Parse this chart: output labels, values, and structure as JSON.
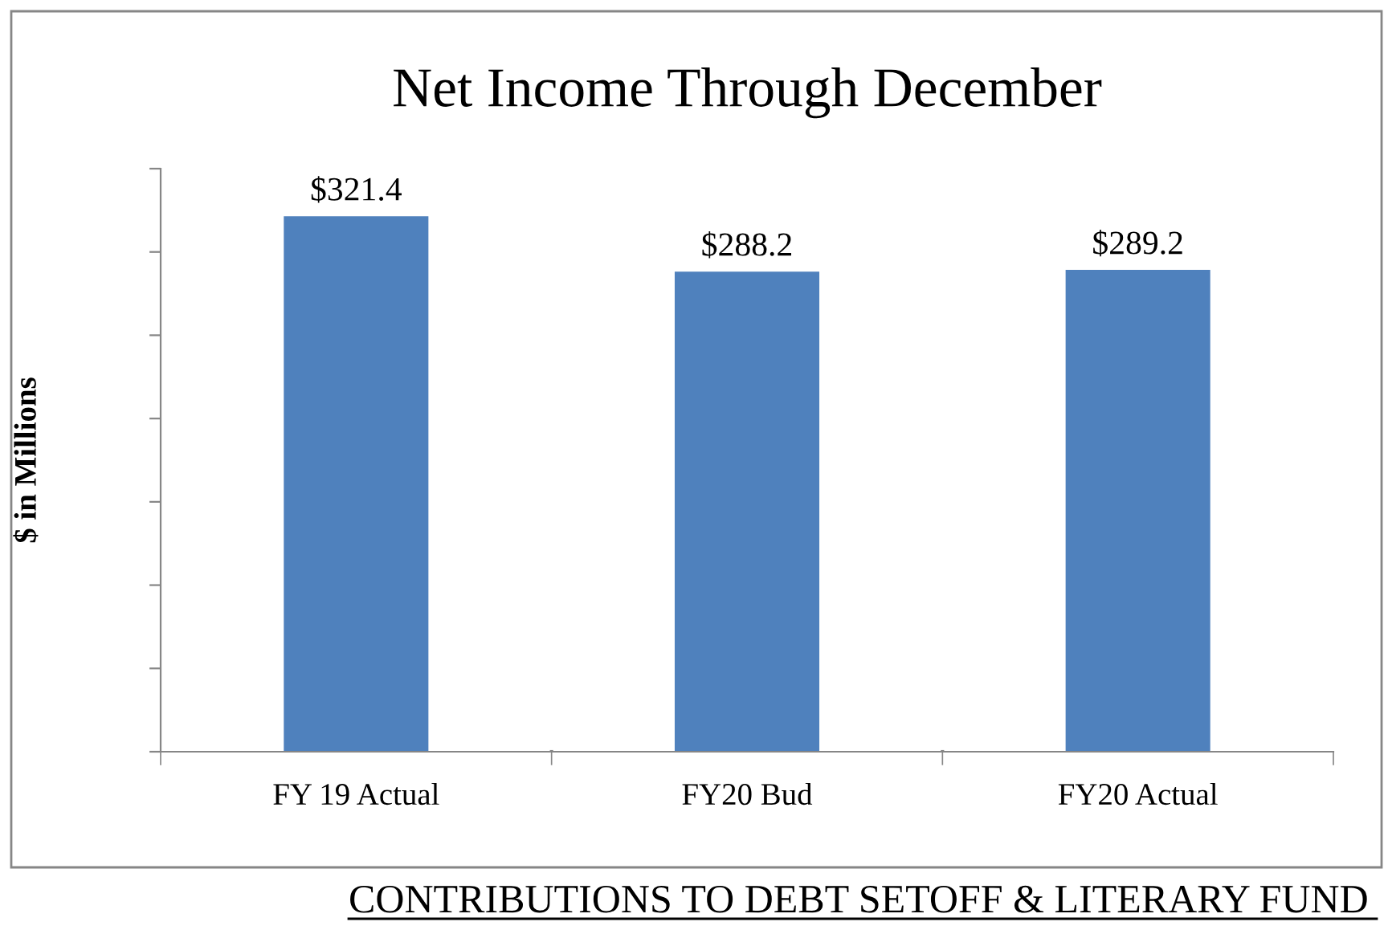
{
  "chart_data": {
    "type": "bar",
    "title": "Net Income Through December",
    "ylabel": "$ in Millions",
    "categories": [
      "FY 19 Actual",
      "FY20 Bud",
      "FY20 Actual"
    ],
    "values": [
      321.4,
      288.2,
      289.2
    ],
    "value_labels": [
      "$321.4",
      "$288.2",
      "$289.2"
    ],
    "color": "#4f81bd",
    "ylim": [
      0,
      350
    ],
    "yticks": [
      {
        "value": 0,
        "label": null
      },
      {
        "value": 50,
        "label": null
      },
      {
        "value": 100,
        "label": null
      },
      {
        "value": 150,
        "label": null
      },
      {
        "value": 200,
        "label": null
      },
      {
        "value": 250,
        "label": null
      },
      {
        "value": 300,
        "label": null
      },
      {
        "value": 350,
        "label": null
      }
    ],
    "tick_labels": "x",
    "grid": false,
    "annotations": [
      "CONTRIBUTIONS TO DEBT SETOFF & LITERARY FUND"
    ]
  }
}
